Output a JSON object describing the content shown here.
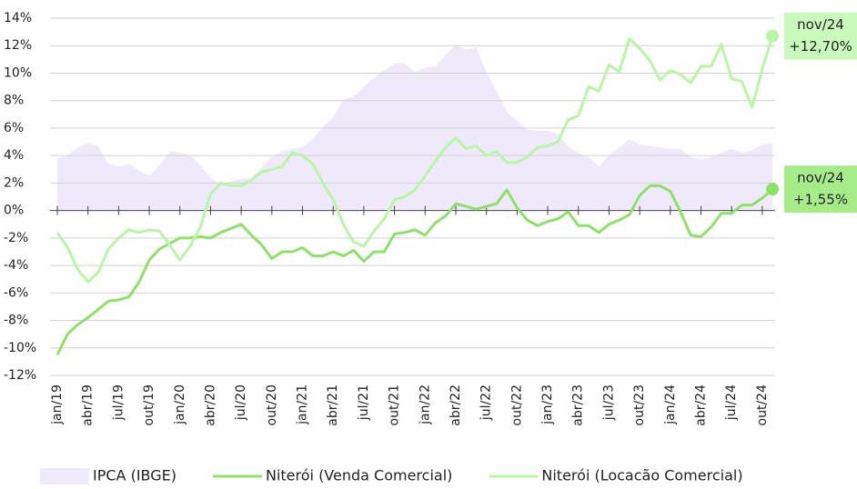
{
  "chart_data": {
    "type": "line",
    "categories": [
      "jan/19",
      null,
      null,
      "abr/19",
      null,
      null,
      "jul/19",
      null,
      null,
      "out/19",
      null,
      null,
      "jan/20",
      null,
      null,
      "abr/20",
      null,
      null,
      "jul/20",
      null,
      null,
      "out/20",
      null,
      null,
      "jan/21",
      null,
      null,
      "abr/21",
      null,
      null,
      "jul/21",
      null,
      null,
      "out/21",
      null,
      null,
      "jan/22",
      null,
      null,
      "abr/22",
      null,
      null,
      "jul/22",
      null,
      null,
      "out/22",
      null,
      null,
      "jan/23",
      null,
      null,
      "abr/23",
      null,
      null,
      "jul/23",
      null,
      null,
      "out/23",
      null,
      null,
      "jan/24",
      null,
      null,
      "abr/24",
      null,
      null,
      "jul/24",
      null,
      null,
      "out/24",
      null
    ],
    "series": [
      {
        "name": "IPCA (IBGE)",
        "color": "#efe9fb",
        "area": true,
        "values": [
          3.8,
          4.0,
          4.6,
          4.9,
          4.7,
          3.4,
          3.2,
          3.4,
          2.9,
          2.5,
          3.3,
          4.3,
          4.2,
          4.0,
          3.3,
          2.4,
          1.9,
          2.1,
          2.3,
          2.4,
          3.1,
          3.9,
          4.3,
          4.5,
          4.6,
          5.2,
          6.1,
          6.8,
          8.1,
          8.3,
          9.0,
          9.7,
          10.2,
          10.7,
          10.7,
          10.1,
          10.4,
          10.5,
          11.3,
          12.1,
          11.7,
          11.9,
          10.1,
          8.7,
          7.2,
          6.5,
          5.9,
          5.8,
          5.8,
          5.6,
          4.7,
          4.2,
          3.9,
          3.2,
          4.0,
          4.6,
          5.2,
          4.8,
          4.7,
          4.6,
          4.5,
          4.5,
          3.9,
          3.7,
          3.9,
          4.2,
          4.5,
          4.2,
          4.4,
          4.8,
          4.9
        ]
      },
      {
        "name": "Niterói (Venda Comercial)",
        "color": "#8ee06b",
        "values": [
          -10.5,
          -9.0,
          -8.3,
          -7.8,
          -7.2,
          -6.6,
          -6.5,
          -6.3,
          -5.2,
          -3.6,
          -2.8,
          -2.4,
          -2.0,
          -2.0,
          -1.9,
          -2.0,
          -1.6,
          -1.3,
          -1.0,
          -1.8,
          -2.5,
          -3.5,
          -3.0,
          -3.0,
          -2.7,
          -3.3,
          -3.3,
          -3.0,
          -3.3,
          -2.9,
          -3.7,
          -3.0,
          -3.0,
          -1.7,
          -1.6,
          -1.4,
          -1.8,
          -0.9,
          -0.4,
          0.5,
          0.3,
          0.1,
          0.3,
          0.5,
          1.5,
          0.2,
          -0.7,
          -1.1,
          -0.8,
          -0.6,
          -0.1,
          -1.1,
          -1.1,
          -1.6,
          -1.0,
          -0.7,
          -0.3,
          1.1,
          1.8,
          1.8,
          1.4,
          -0.1,
          -1.8,
          -1.9,
          -1.2,
          -0.2,
          -0.2,
          0.4,
          0.4,
          0.9,
          1.55
        ]
      },
      {
        "name": "Niterói (Locacão Comercial)",
        "color": "#b9f5a7",
        "values": [
          -1.6,
          -2.7,
          -4.3,
          -5.2,
          -4.5,
          -2.8,
          -2.0,
          -1.4,
          -1.6,
          -1.4,
          -1.5,
          -2.5,
          -3.6,
          -2.6,
          -1.2,
          1.2,
          2.0,
          1.8,
          1.8,
          2.2,
          2.8,
          3.0,
          3.2,
          4.2,
          4.0,
          3.4,
          2.0,
          0.8,
          -1.0,
          -2.3,
          -2.6,
          -1.5,
          -0.6,
          0.8,
          1.0,
          1.5,
          2.5,
          3.6,
          4.6,
          5.3,
          4.5,
          4.7,
          4.0,
          4.3,
          3.5,
          3.5,
          3.9,
          4.6,
          4.7,
          5.0,
          6.6,
          6.9,
          9.0,
          8.7,
          10.6,
          10.1,
          12.5,
          11.8,
          10.9,
          9.5,
          10.2,
          9.9,
          9.3,
          10.5,
          10.5,
          12.1,
          9.6,
          9.4,
          7.5,
          10.3,
          12.7
        ]
      }
    ],
    "annotations": [
      {
        "lines": [
          "nov/24",
          "+12,70%"
        ],
        "color": "#c9f9bc"
      },
      {
        "lines": [
          "nov/24",
          "+1,55%"
        ],
        "color": "#a6ec8a"
      }
    ],
    "ylim": [
      -12,
      14
    ],
    "yticks": [
      {
        "value": -12,
        "label": "-12%"
      },
      {
        "value": -10,
        "label": "-10%"
      },
      {
        "value": -8,
        "label": "-8%"
      },
      {
        "value": -6,
        "label": "-6%"
      },
      {
        "value": -4,
        "label": "-4%"
      },
      {
        "value": -2,
        "label": "-2%"
      },
      {
        "value": 0,
        "label": "0%"
      },
      {
        "value": 2,
        "label": "2%"
      },
      {
        "value": 4,
        "label": "4%"
      },
      {
        "value": 6,
        "label": "6%"
      },
      {
        "value": 8,
        "label": "8%"
      },
      {
        "value": 10,
        "label": "10%"
      },
      {
        "value": 12,
        "label": "12%"
      },
      {
        "value": 14,
        "label": "14%"
      }
    ],
    "grid": true
  }
}
